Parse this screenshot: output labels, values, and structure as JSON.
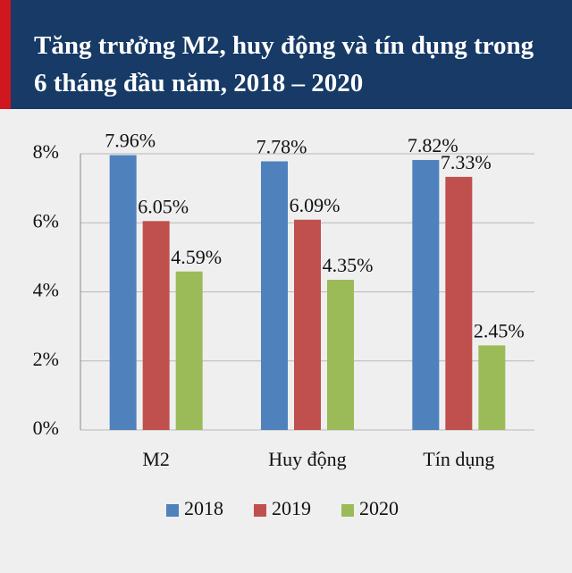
{
  "chart_data": {
    "type": "bar",
    "title": "Tăng trưởng M2, huy động và tín dụng trong 6 tháng đầu năm, 2018 – 2020",
    "categories": [
      "M2",
      "Huy động",
      "Tín dụng"
    ],
    "series": [
      {
        "name": "2018",
        "color": "#4f81bd",
        "values": [
          7.96,
          7.78,
          7.82
        ],
        "value_labels": [
          "7.96%",
          "7.78%",
          "7.82%"
        ]
      },
      {
        "name": "2019",
        "color": "#c0504d",
        "values": [
          6.05,
          6.09,
          7.33
        ],
        "value_labels": [
          "6.05%",
          "6.09%",
          "7.33%"
        ]
      },
      {
        "name": "2020",
        "color": "#9bbb59",
        "values": [
          4.59,
          4.35,
          2.45
        ],
        "value_labels": [
          "4.59%",
          "4.35%",
          "2.45%"
        ]
      }
    ],
    "ylim": [
      0,
      8
    ],
    "yticks": [
      {
        "value": 0,
        "label": "0%"
      },
      {
        "value": 2,
        "label": "2%"
      },
      {
        "value": 4,
        "label": "4%"
      },
      {
        "value": 6,
        "label": "6%"
      },
      {
        "value": 8,
        "label": "8%"
      }
    ],
    "grid": true
  }
}
